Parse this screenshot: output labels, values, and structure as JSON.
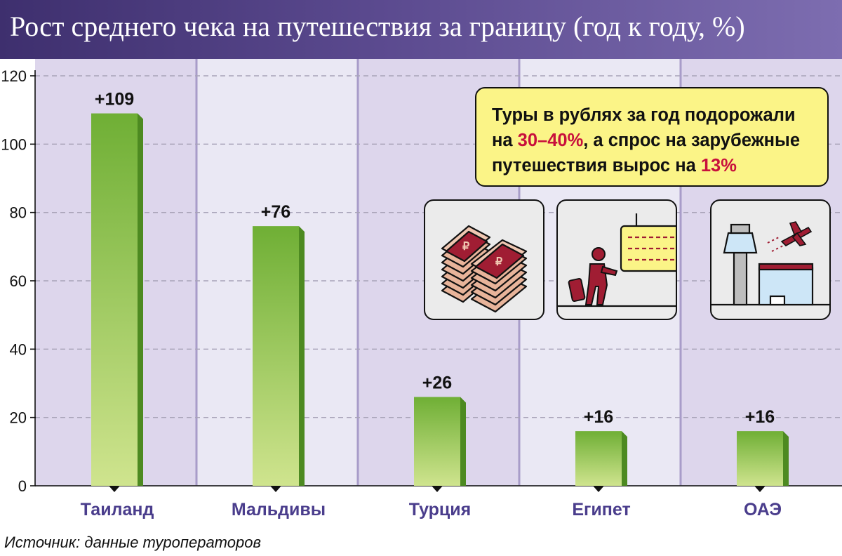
{
  "header": {
    "title": "Рост среднего чека на путешествия за границу (год к году, %)"
  },
  "callout": {
    "line1": "Туры в рублях за год подорожали",
    "line2_prefix": "на ",
    "line2_highlight": "30–40%",
    "line2_suffix": ", а спрос на зарубежные",
    "line3_prefix": "путешествия вырос на ",
    "line3_highlight": "13%"
  },
  "icons": [
    {
      "name": "money-stacks-icon"
    },
    {
      "name": "traveler-departure-board-icon"
    },
    {
      "name": "airport-tower-plane-icon"
    }
  ],
  "source": "Источник: данные туроператоров",
  "colors": {
    "header_start": "#3e2f6e",
    "band_dark": "#ddd6ec",
    "band_light": "#eae8f4",
    "bar_top": "#6faf35",
    "bar_bottom": "#cfe48e",
    "bar_side": "#4d8a21",
    "category_label": "#4a3d8c",
    "highlight": "#c8103c",
    "callout_bg": "#fbf487"
  },
  "chart_data": {
    "type": "bar",
    "title": "Рост среднего чека на путешествия за границу (год к году, %)",
    "categories": [
      "Таиланд",
      "Мальдивы",
      "Турция",
      "Египет",
      "ОАЭ"
    ],
    "values": [
      109,
      76,
      26,
      16,
      16
    ],
    "value_labels": [
      "+109",
      "+76",
      "+26",
      "+16",
      "+16"
    ],
    "yticks": [
      "0",
      "20",
      "40",
      "60",
      "80",
      "100",
      "120"
    ],
    "ylim": [
      0,
      120
    ],
    "xlabel": "",
    "ylabel": "",
    "grid": true
  }
}
